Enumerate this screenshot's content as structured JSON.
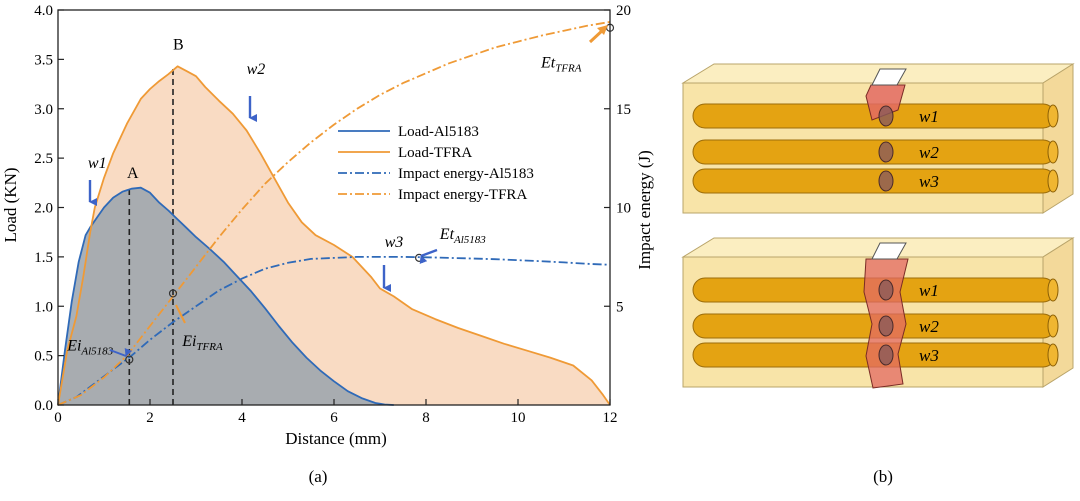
{
  "figure": {
    "panel_a_label": "(a)",
    "panel_b_label": "(b)"
  },
  "chart_data": {
    "type": "line",
    "xlabel": "Distance (mm)",
    "ylabel": "Load (KN)",
    "y2label": "Impact energy (J)",
    "xlim": [
      0,
      12
    ],
    "ylim": [
      0,
      4.0
    ],
    "y2lim": [
      0,
      20
    ],
    "x_ticks": [
      "0",
      "2",
      "4",
      "6",
      "8",
      "10",
      "12"
    ],
    "y_ticks": [
      "0.0",
      "0.5",
      "1.0",
      "1.5",
      "2.0",
      "2.5",
      "3.0",
      "3.5",
      "4.0"
    ],
    "y2_ticks": [
      "5",
      "10",
      "15",
      "20"
    ],
    "grid": false,
    "legend_position": "center-right",
    "series": [
      {
        "name": "Load-Al5183",
        "axis": "left",
        "style": "solid",
        "color": "#2f6ab8",
        "fill": "#9aa3ad",
        "x": [
          0,
          0.15,
          0.3,
          0.45,
          0.6,
          0.7,
          0.85,
          1.0,
          1.2,
          1.4,
          1.6,
          1.8,
          2.0,
          2.2,
          2.4,
          2.6,
          2.8,
          3.0,
          3.3,
          3.6,
          3.9,
          4.2,
          4.5,
          4.8,
          5.1,
          5.4,
          5.7,
          6.0,
          6.3,
          6.6,
          6.9,
          7.1,
          7.3
        ],
        "y": [
          0,
          0.55,
          1.05,
          1.45,
          1.72,
          1.8,
          1.9,
          2.0,
          2.1,
          2.16,
          2.19,
          2.2,
          2.15,
          2.05,
          1.97,
          1.88,
          1.79,
          1.7,
          1.58,
          1.45,
          1.3,
          1.15,
          0.98,
          0.8,
          0.63,
          0.48,
          0.35,
          0.24,
          0.14,
          0.07,
          0.02,
          0.005,
          0
        ]
      },
      {
        "name": "Load-TFRA",
        "axis": "left",
        "style": "solid",
        "color": "#ef9a36",
        "fill": "#f7d2b4",
        "x": [
          0,
          0.2,
          0.4,
          0.55,
          0.7,
          0.8,
          1.0,
          1.2,
          1.5,
          1.8,
          2.0,
          2.2,
          2.4,
          2.6,
          2.8,
          3.0,
          3.2,
          3.5,
          3.8,
          4.1,
          4.4,
          4.7,
          5.0,
          5.3,
          5.6,
          6.0,
          6.4,
          6.8,
          7.0,
          7.3,
          7.7,
          8.2,
          8.7,
          9.2,
          9.7,
          10.2,
          10.7,
          11.2,
          11.6,
          11.85,
          12.0
        ],
        "y": [
          0,
          0.55,
          0.9,
          1.3,
          1.75,
          2.0,
          2.3,
          2.55,
          2.85,
          3.1,
          3.2,
          3.28,
          3.35,
          3.43,
          3.38,
          3.33,
          3.22,
          3.08,
          2.95,
          2.78,
          2.55,
          2.3,
          2.05,
          1.85,
          1.72,
          1.62,
          1.5,
          1.3,
          1.18,
          1.1,
          0.97,
          0.87,
          0.78,
          0.7,
          0.62,
          0.55,
          0.48,
          0.4,
          0.25,
          0.1,
          0
        ]
      },
      {
        "name": "Impact energy-Al5183",
        "axis": "right",
        "style": "dash-dot",
        "color": "#2f6ab8",
        "x": [
          0,
          0.4,
          0.8,
          1.2,
          1.6,
          2.0,
          2.5,
          3.0,
          3.5,
          4.0,
          4.5,
          5.0,
          5.5,
          6.0,
          6.5,
          7.0,
          7.5,
          8.0,
          8.5,
          9.0,
          9.5,
          10.0,
          10.5,
          11.0,
          11.5,
          12.0
        ],
        "y": [
          0,
          0.4,
          1.1,
          1.8,
          2.5,
          3.3,
          4.2,
          5.0,
          5.8,
          6.4,
          6.9,
          7.2,
          7.4,
          7.45,
          7.5,
          7.5,
          7.5,
          7.48,
          7.45,
          7.42,
          7.38,
          7.33,
          7.28,
          7.22,
          7.15,
          7.1
        ]
      },
      {
        "name": "Impact energy-TFRA",
        "axis": "right",
        "style": "dash-dot",
        "color": "#ef9a36",
        "x": [
          0,
          0.5,
          1.0,
          1.5,
          2.0,
          2.5,
          3.0,
          3.5,
          4.0,
          4.5,
          5.0,
          5.5,
          6.0,
          6.5,
          7.0,
          7.5,
          8.0,
          8.5,
          9.0,
          9.5,
          10.0,
          10.5,
          11.0,
          11.5,
          12.0
        ],
        "y": [
          0,
          0.5,
          1.4,
          2.5,
          4.0,
          5.5,
          7.0,
          8.5,
          9.9,
          11.2,
          12.3,
          13.3,
          14.2,
          15.0,
          15.7,
          16.3,
          16.8,
          17.3,
          17.7,
          18.1,
          18.4,
          18.7,
          18.95,
          19.2,
          19.4
        ]
      }
    ],
    "annotations": [
      {
        "text": "A",
        "x": 1.5,
        "y": 2.3
      },
      {
        "text": "B",
        "x": 2.5,
        "y": 3.6
      },
      {
        "text": "w1",
        "x": 0.65,
        "y": 2.4
      },
      {
        "text": "w2",
        "x": 4.1,
        "y": 3.35
      },
      {
        "text": "w3",
        "x": 7.1,
        "y": 1.6
      },
      {
        "text": "Ei",
        "subscript": "Al5183",
        "x": 0.2,
        "y": 0.55
      },
      {
        "text": "Ei",
        "subscript": "TFRA",
        "x": 2.7,
        "y": 0.6
      },
      {
        "text": "Et",
        "subscript": "Al5183",
        "x": 8.3,
        "y": 1.68
      },
      {
        "text": "Et",
        "subscript": "TFRA",
        "x": 10.5,
        "y": 3.42
      }
    ],
    "dashed_markers": [
      {
        "label": "A",
        "x": 1.55,
        "y_top": 2.2
      },
      {
        "label": "B",
        "x": 2.5,
        "y_top": 3.43
      }
    ],
    "points_right_axis": [
      {
        "label": "Ei Al5183",
        "x": 1.55,
        "y": 2.3
      },
      {
        "label": "Ei TFRA",
        "x": 2.5,
        "y": 5.65
      },
      {
        "label": "Et Al5183",
        "x": 7.85,
        "y": 7.45
      },
      {
        "label": "Et TFRA",
        "x": 12.0,
        "y": 19.1
      }
    ]
  },
  "panel_b": {
    "diagrams": [
      {
        "wire_labels": [
          "w1",
          "w2",
          "w3"
        ]
      },
      {
        "wire_labels": [
          "w1",
          "w2",
          "w3"
        ]
      }
    ]
  },
  "colors": {
    "blue": "#2f6ab8",
    "orange": "#ef9a36",
    "block": "#f8e4a8",
    "wire": "#e4a312",
    "crack": "#e36a63"
  }
}
